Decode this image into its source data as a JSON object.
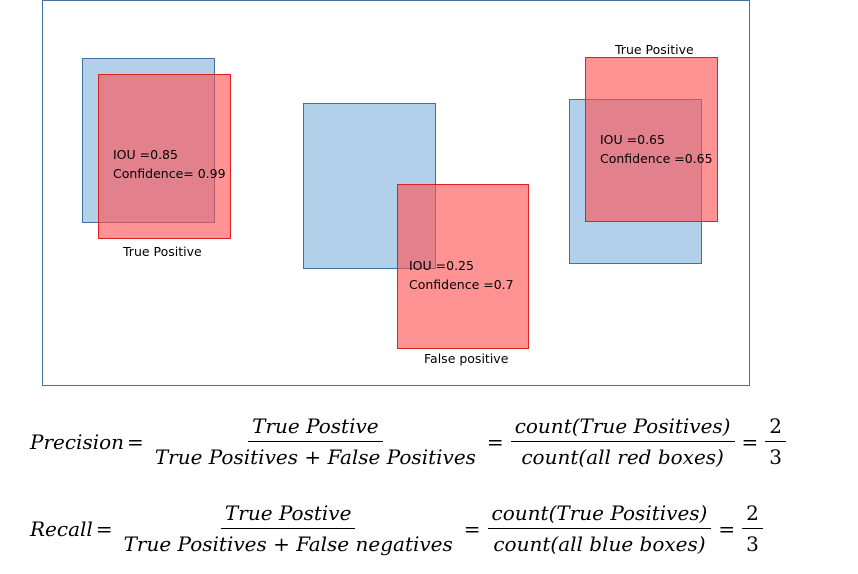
{
  "groups": [
    {
      "iou": "IOU =0.85",
      "confidence": "Confidence= 0.99",
      "label": "True Positive"
    },
    {
      "iou": "IOU =0.25",
      "confidence": "Confidence =0.7",
      "label": "False positive"
    },
    {
      "iou": "IOU =0.65",
      "confidence": "Confidence =0.65",
      "label": "True Positive"
    }
  ],
  "precision": {
    "name": "Precision",
    "eq": "=",
    "num1": "True Postive",
    "den1": "True Positives + False Positives",
    "num2": "count(True Positives)",
    "den2": "count(all red boxes)",
    "num3": "2",
    "den3": "3"
  },
  "recall": {
    "name": "Recall",
    "eq": "=",
    "num1": "True Postive",
    "den1": "True Positives + False negatives",
    "num2": "count(True Positives)",
    "den2": "count(all blue boxes)",
    "num3": "2",
    "den3": "3"
  }
}
